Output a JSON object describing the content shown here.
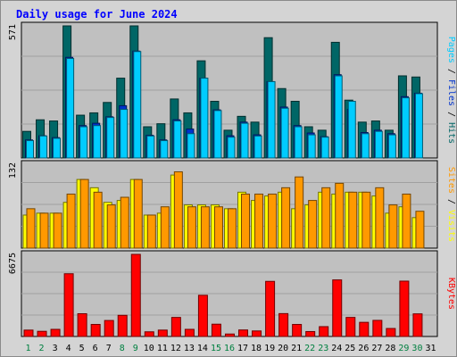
{
  "chart_data": {
    "type": "bar",
    "title": "Daily usage for June 2024",
    "days": [
      "1",
      "2",
      "3",
      "4",
      "5",
      "6",
      "7",
      "8",
      "9",
      "10",
      "11",
      "12",
      "13",
      "14",
      "15",
      "16",
      "17",
      "18",
      "19",
      "20",
      "21",
      "22",
      "23",
      "24",
      "25",
      "26",
      "27",
      "28",
      "29",
      "30",
      "31"
    ],
    "weekend_days": [
      "1",
      "2",
      "8",
      "9",
      "15",
      "16",
      "22",
      "23",
      "29",
      "30"
    ],
    "panels": [
      {
        "key": "top",
        "ymax": 571,
        "ylabel_parts": [
          {
            "text": "Pages",
            "color": "#00ccff"
          },
          {
            "text": " / ",
            "color": "#000000"
          },
          {
            "text": "Files",
            "color": "#0033cc"
          },
          {
            "text": " / ",
            "color": "#000000"
          },
          {
            "text": "Hits",
            "color": "#006666"
          }
        ],
        "series": [
          {
            "name": "Hits",
            "color": "#006666",
            "values": [
              115,
              165,
              160,
              571,
              185,
              195,
              240,
              345,
              571,
              135,
              148,
              255,
              195,
              420,
              245,
              120,
              180,
              155,
              520,
              300,
              245,
              135,
              120,
              500,
              250,
              155,
              160,
              120,
              355,
              350,
              0
            ]
          },
          {
            "name": "Files",
            "color": "#0033cc",
            "values": [
              78,
              96,
              88,
              435,
              140,
              150,
              178,
              226,
              462,
              98,
              78,
              165,
              125,
              345,
              208,
              96,
              155,
              100,
              330,
              220,
              140,
              108,
              92,
              360,
              210,
              110,
              120,
              105,
              265,
              280,
              0
            ]
          },
          {
            "name": "Pages",
            "color": "#00ccff",
            "values": [
              75,
              95,
              85,
              430,
              135,
              140,
              175,
              210,
              460,
              95,
              75,
              160,
              105,
              345,
              205,
              90,
              150,
              95,
              330,
              215,
              135,
              100,
              90,
              355,
              245,
              105,
              115,
              100,
              260,
              278,
              0
            ]
          }
        ]
      },
      {
        "key": "mid",
        "ymax": 132,
        "ylabel_parts": [
          {
            "text": "Sites",
            "color": "#ff9900"
          },
          {
            "text": " / ",
            "color": "#000000"
          },
          {
            "text": "Visits",
            "color": "#ffff00"
          }
        ],
        "series": [
          {
            "name": "Visits",
            "color": "#ffff00",
            "values": [
              52,
              55,
              55,
              72,
              108,
              95,
              72,
              75,
              108,
              52,
              55,
              115,
              68,
              68,
              68,
              62,
              88,
              75,
              82,
              88,
              62,
              68,
              88,
              85,
              88,
              88,
              82,
              55,
              65,
              48,
              0
            ]
          },
          {
            "name": "Sites",
            "color": "#ff9900",
            "values": [
              62,
              55,
              55,
              85,
              108,
              88,
              68,
              80,
              108,
              52,
              65,
              120,
              65,
              65,
              65,
              62,
              85,
              85,
              85,
              95,
              112,
              75,
              95,
              102,
              88,
              88,
              95,
              68,
              85,
              58,
              0
            ]
          }
        ]
      },
      {
        "key": "bot",
        "ymax": 6675,
        "ylabel_parts": [
          {
            "text": "KBytes",
            "color": "#ff0000"
          }
        ],
        "series": [
          {
            "name": "KBytes",
            "color": "#ff0000",
            "values": [
              520,
              420,
              580,
              5100,
              1850,
              980,
              1300,
              1720,
              6675,
              380,
              520,
              1550,
              580,
              3350,
              1000,
              200,
              530,
              450,
              4480,
              1860,
              980,
              400,
              800,
              4600,
              1550,
              1150,
              1310,
              650,
              4500,
              1840,
              0
            ]
          }
        ]
      }
    ]
  }
}
